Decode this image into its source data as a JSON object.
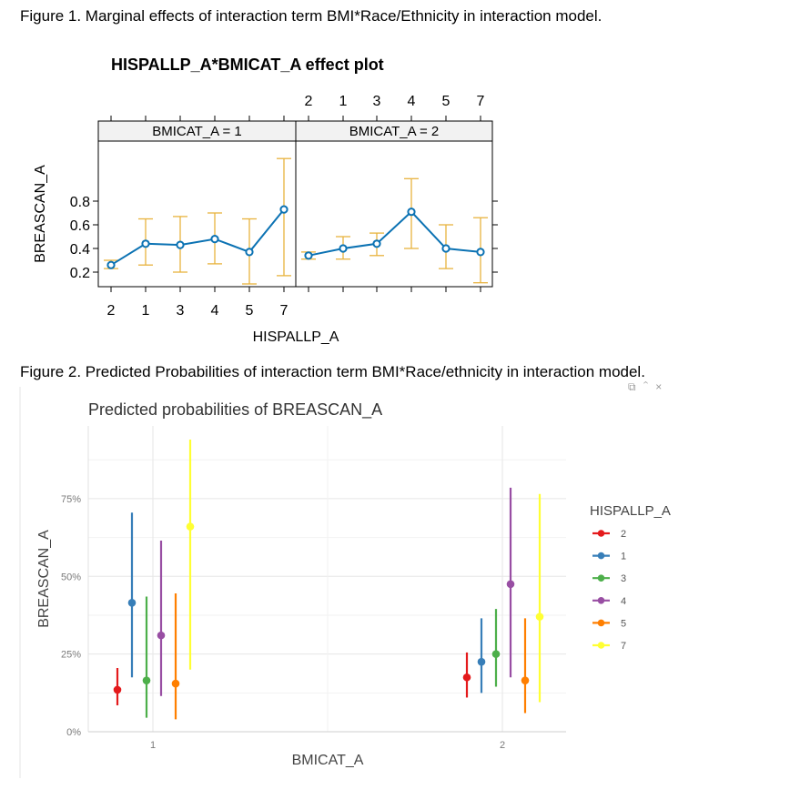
{
  "captions": {
    "figure1": "Figure 1. Marginal effects of interaction term BMI*Race/Ethnicity in interaction model.",
    "figure2": "Figure 2. Predicted Probabilities of interaction term BMI*Race/ethnicity in interaction model."
  },
  "toolbar_icons": [
    "copy-icon",
    "chevron-up-icon",
    "close-icon"
  ],
  "colors": {
    "effect_line": "#0b72b3",
    "effect_ci": "#e8b33e",
    "strip_bg": "#f2f2f2"
  },
  "chart_data": [
    {
      "type": "line",
      "title": "HISPALLP_A*BMICAT_A effect plot",
      "xlabel": "HISPALLP_A",
      "ylabel": "BREASCAN_A",
      "x": [
        "2",
        "1",
        "3",
        "4",
        "5",
        "7"
      ],
      "ylim": [
        0.08,
        1.2
      ],
      "yticks": [
        0.2,
        0.4,
        0.6,
        0.8
      ],
      "grid": false,
      "panels": [
        {
          "strip": "BMICAT_A = 1",
          "values": [
            0.26,
            0.44,
            0.43,
            0.48,
            0.37,
            0.73
          ],
          "lower": [
            0.23,
            0.26,
            0.2,
            0.27,
            0.1,
            0.17
          ],
          "upper": [
            0.3,
            0.65,
            0.67,
            0.7,
            0.65,
            1.16
          ]
        },
        {
          "strip": "BMICAT_A = 2",
          "values": [
            0.34,
            0.4,
            0.44,
            0.71,
            0.4,
            0.37
          ],
          "lower": [
            0.31,
            0.31,
            0.34,
            0.4,
            0.23,
            0.11
          ],
          "upper": [
            0.37,
            0.5,
            0.53,
            0.99,
            0.6,
            0.66
          ]
        }
      ]
    },
    {
      "type": "scatter",
      "title": "Predicted probabilities of BREASCAN_A",
      "xlabel": "BMICAT_A",
      "ylabel": "BREASCAN_A",
      "categories": [
        "1",
        "2"
      ],
      "ylim": [
        0,
        96
      ],
      "yticks": [
        "0%",
        "25%",
        "50%",
        "75%"
      ],
      "grid": true,
      "legend_title": "HISPALLP_A",
      "legend_position": "right",
      "series": [
        {
          "name": "2",
          "color": "#e41a1c",
          "values": [
            13.5,
            17.5
          ],
          "lower": [
            8.5,
            11
          ],
          "upper": [
            20.5,
            25.5
          ]
        },
        {
          "name": "1",
          "color": "#377eb8",
          "values": [
            41.5,
            22.5
          ],
          "lower": [
            17.5,
            12.5
          ],
          "upper": [
            70.5,
            36.5
          ]
        },
        {
          "name": "3",
          "color": "#4daf4a",
          "values": [
            16.5,
            25
          ],
          "lower": [
            4.5,
            14.5
          ],
          "upper": [
            43.5,
            39.5
          ]
        },
        {
          "name": "4",
          "color": "#984ea3",
          "values": [
            31,
            47.5
          ],
          "lower": [
            11.5,
            17.5
          ],
          "upper": [
            61.5,
            78.5
          ]
        },
        {
          "name": "5",
          "color": "#ff7f00",
          "values": [
            15.5,
            16.5
          ],
          "lower": [
            4,
            6
          ],
          "upper": [
            44.5,
            36.5
          ]
        },
        {
          "name": "7",
          "color": "#ffff33",
          "values": [
            66,
            37
          ],
          "lower": [
            20,
            9.5
          ],
          "upper": [
            94,
            76.5
          ]
        }
      ]
    }
  ]
}
